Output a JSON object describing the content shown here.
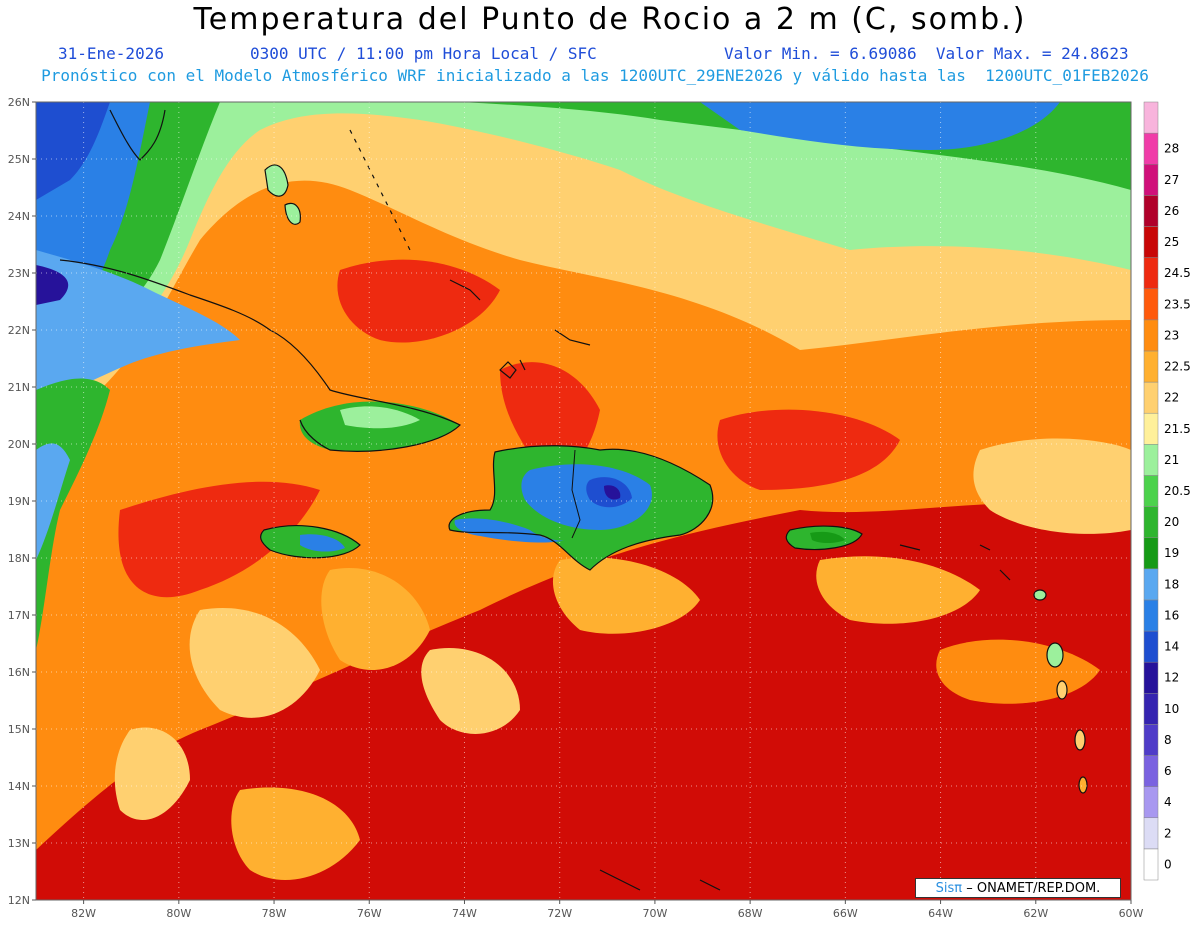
{
  "header": {
    "title": "Temperatura del Punto de Rocio a 2 m (C, somb.)",
    "date": "31-Ene-2026",
    "time": "0300 UTC / 11:00 pm Hora Local / SFC",
    "minmax": "Valor Min. = 6.69086  Valor Max. = 24.8623",
    "forecast": "Pronóstico con el Modelo Atmosférico WRF inicializado a las 1200UTC_29ENE2026 y válido hasta las  1200UTC_01FEB2026"
  },
  "axes": {
    "lat_labels": [
      "26N",
      "25N",
      "24N",
      "23N",
      "22N",
      "21N",
      "20N",
      "19N",
      "18N",
      "17N",
      "16N",
      "15N",
      "14N",
      "13N",
      "12N"
    ],
    "lon_labels": [
      "82W",
      "80W",
      "78W",
      "76W",
      "74W",
      "72W",
      "70W",
      "68W",
      "66W",
      "64W",
      "62W",
      "60W"
    ]
  },
  "colorbar": {
    "levels": [
      "0",
      "2",
      "4",
      "6",
      "8",
      "10",
      "12",
      "14",
      "16",
      "18",
      "19",
      "20",
      "20.5",
      "21",
      "21.5",
      "22",
      "22.5",
      "23",
      "23.5",
      "24.5",
      "25",
      "26",
      "27",
      "28"
    ],
    "colors": [
      "#ffffff",
      "#dcdcf5",
      "#a898f0",
      "#7a62e0",
      "#4f3cc8",
      "#3524b0",
      "#26129a",
      "#1e4ed0",
      "#2a80e6",
      "#5aa8f0",
      "#169a16",
      "#2eb52e",
      "#4cd24c",
      "#9cf09c",
      "#fff09a",
      "#ffd070",
      "#ffb030",
      "#ff8c10",
      "#ff5a0c",
      "#ee2a10",
      "#c80606",
      "#b0002a",
      "#d0107a",
      "#f03ca8",
      "#f8b4dc"
    ]
  },
  "credit": {
    "brand": "Sisπ",
    "text": "– ONAMET/REP.DOM."
  }
}
